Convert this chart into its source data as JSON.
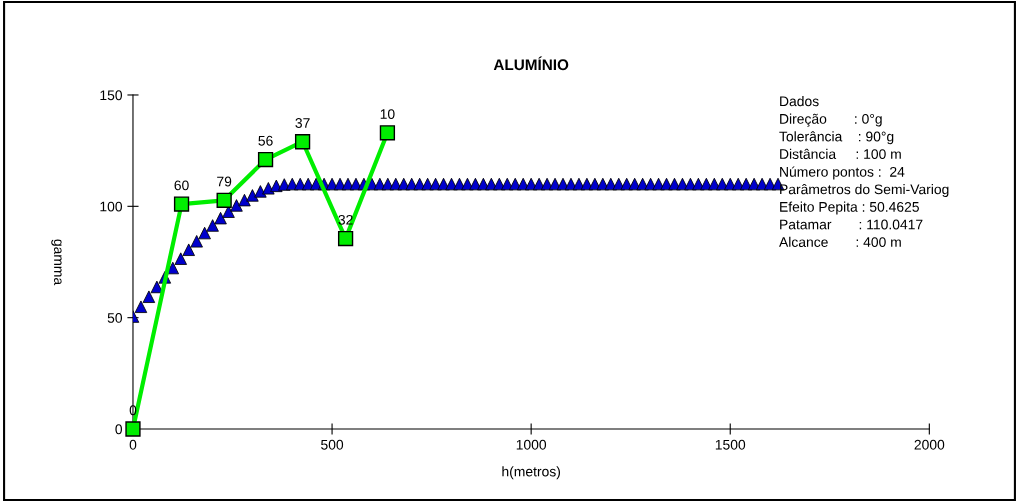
{
  "chart_data": {
    "type": "line",
    "title": "ALUMÍNIO",
    "xlabel": "h(metros)",
    "ylabel": "gamma",
    "xlim": [
      0,
      2000
    ],
    "xticks": [
      0,
      500,
      1000,
      1500,
      2000
    ],
    "ylim": [
      0,
      150
    ],
    "yticks": [
      0,
      50,
      100,
      150
    ],
    "grid": false,
    "series": [
      {
        "type": "scatter",
        "marker": "triangle",
        "color": "#0000cc",
        "x": [
          0,
          20,
          40,
          60,
          80,
          100,
          120,
          140,
          160,
          180,
          200,
          220,
          240,
          260,
          280,
          300,
          320,
          340,
          360,
          380,
          400,
          420,
          440,
          460,
          480,
          500,
          520,
          540,
          560,
          580,
          600,
          620,
          640,
          660,
          680,
          700,
          720,
          740,
          760,
          780,
          800,
          820,
          840,
          860,
          880,
          900,
          920,
          940,
          960,
          980,
          1000,
          1020,
          1040,
          1060,
          1080,
          1100,
          1120,
          1140,
          1160,
          1180,
          1200,
          1220,
          1240,
          1260,
          1280,
          1300,
          1320,
          1340,
          1360,
          1380,
          1400,
          1420,
          1440,
          1460,
          1480,
          1500,
          1520,
          1540,
          1560,
          1580,
          1600,
          1620
        ],
        "values": [
          50.5,
          54.9,
          59.4,
          63.8,
          68.1,
          72.3,
          76.5,
          80.5,
          84.3,
          88.0,
          91.4,
          94.7,
          97.6,
          100.4,
          102.8,
          104.9,
          106.7,
          108.1,
          109.2,
          109.8,
          110,
          110,
          110,
          110,
          110,
          110,
          110,
          110,
          110,
          110,
          110,
          110,
          110,
          110,
          110,
          110,
          110,
          110,
          110,
          110,
          110,
          110,
          110,
          110,
          110,
          110,
          110,
          110,
          110,
          110,
          110,
          110,
          110,
          110,
          110,
          110,
          110,
          110,
          110,
          110,
          110,
          110,
          110,
          110,
          110,
          110,
          110,
          110,
          110,
          110,
          110,
          110,
          110,
          110,
          110,
          110,
          110,
          110,
          110,
          110,
          110,
          110
        ]
      },
      {
        "marker": "square",
        "line_style": "solid",
        "color": "#00ee00",
        "x": [
          0,
          122,
          229,
          333,
          426,
          534,
          639
        ],
        "values": [
          0,
          101,
          102.7,
          121,
          129,
          85.5,
          133
        ]
      }
    ],
    "annotations": [
      {
        "text": "0",
        "x": 0,
        "y": 0
      },
      {
        "text": "60",
        "x": 122,
        "y": 101
      },
      {
        "text": "79",
        "x": 229,
        "y": 102.7
      },
      {
        "text": "56",
        "x": 333,
        "y": 121
      },
      {
        "text": "37",
        "x": 426,
        "y": 129
      },
      {
        "text": "32",
        "x": 534,
        "y": 85.5
      },
      {
        "text": "10",
        "x": 639,
        "y": 133
      },
      "Dados",
      "Direção       : 0°g",
      "Tolerância    : 90°g",
      "Distância     : 100 m",
      "Número pontos :  24",
      "Parâmetros do Semi-Variog",
      "Efeito Pepita : 50.4625",
      "Patamar       : 110.0417",
      "Alcance       : 400 m"
    ]
  }
}
